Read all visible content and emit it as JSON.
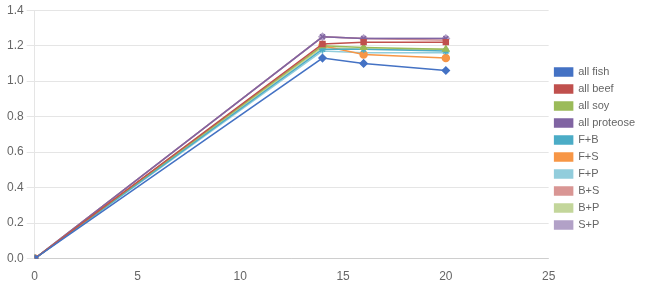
{
  "chart_data": {
    "type": "line",
    "x": [
      0,
      14,
      16,
      20
    ],
    "series": [
      {
        "name": "all fish",
        "color": "#4472C4",
        "marker": "diamond",
        "values": [
          0.0,
          1.13,
          1.1,
          1.06
        ]
      },
      {
        "name": "all beef",
        "color": "#C0504D",
        "marker": "square",
        "values": [
          0.0,
          1.21,
          1.22,
          1.22
        ]
      },
      {
        "name": "all soy",
        "color": "#9BBB59",
        "marker": "triangle",
        "values": [
          0.0,
          1.2,
          1.19,
          1.18
        ]
      },
      {
        "name": "all proteose",
        "color": "#8064A2",
        "marker": "x",
        "values": [
          0.0,
          1.25,
          1.24,
          1.24
        ]
      },
      {
        "name": "F+B",
        "color": "#4BACC6",
        "marker": "star",
        "values": [
          0.0,
          1.18,
          1.18,
          1.17
        ]
      },
      {
        "name": "F+S",
        "color": "#F79646",
        "marker": "circle",
        "values": [
          0.0,
          1.2,
          1.15,
          1.13
        ]
      },
      {
        "name": "F+P",
        "color": "#92CDDC",
        "marker": "plus",
        "values": [
          0.0,
          1.17,
          1.16,
          1.16
        ]
      },
      {
        "name": "B+S",
        "color": "#D99694",
        "marker": "none",
        "values": [
          0.0,
          1.25,
          1.24,
          1.23
        ]
      },
      {
        "name": "B+P",
        "color": "#C3D69B",
        "marker": "none",
        "values": [
          0.0,
          1.19,
          1.18,
          1.18
        ]
      },
      {
        "name": "S+P",
        "color": "#B2A1C7",
        "marker": "diamond",
        "values": [
          0.0,
          1.25,
          1.24,
          1.24
        ]
      }
    ],
    "xlim": [
      0,
      25
    ],
    "xticks": [
      0,
      5,
      10,
      15,
      20,
      25
    ],
    "ylim": [
      0,
      1.4
    ],
    "yticks": [
      {
        "value": 0,
        "label": "0.0"
      },
      0.2,
      0.4,
      0.6,
      0.8,
      {
        "value": 1.0,
        "label": "1.0"
      },
      1.2,
      1.4
    ],
    "grid": true,
    "legend": "right"
  }
}
